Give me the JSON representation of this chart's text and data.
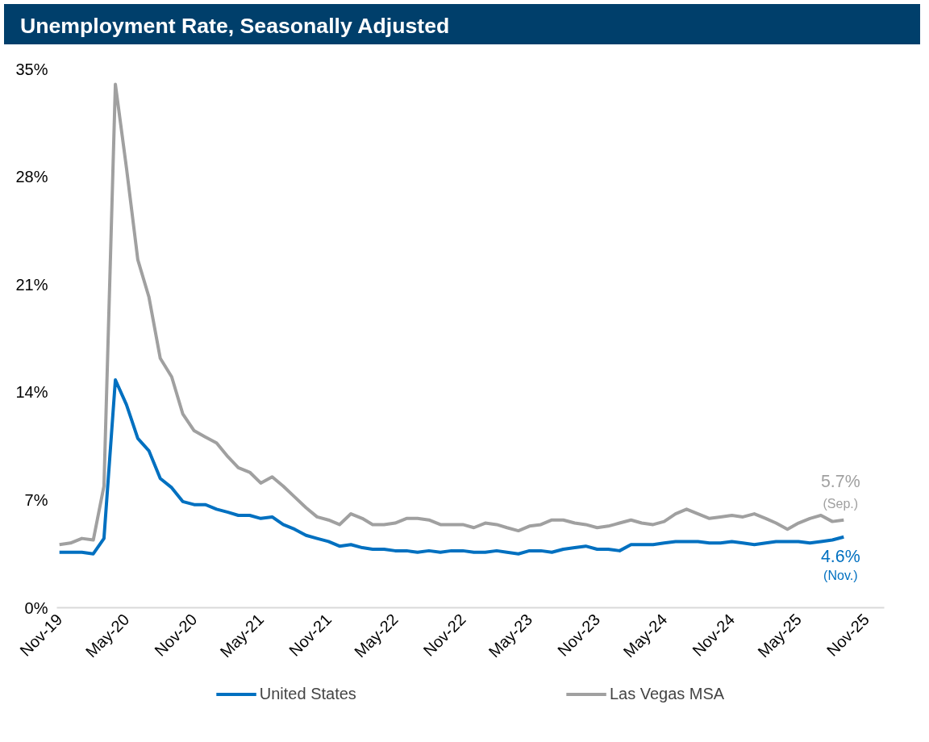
{
  "chart_data": {
    "type": "line",
    "title": "Unemployment Rate, Seasonally Adjusted",
    "x": [
      "2019-11",
      "2019-12",
      "2020-01",
      "2020-02",
      "2020-03",
      "2020-04",
      "2020-05",
      "2020-06",
      "2020-07",
      "2020-08",
      "2020-09",
      "2020-10",
      "2020-11",
      "2020-12",
      "2021-01",
      "2021-02",
      "2021-03",
      "2021-04",
      "2021-05",
      "2021-06",
      "2021-07",
      "2021-08",
      "2021-09",
      "2021-10",
      "2021-11",
      "2021-12",
      "2022-01",
      "2022-02",
      "2022-03",
      "2022-04",
      "2022-05",
      "2022-06",
      "2022-07",
      "2022-08",
      "2022-09",
      "2022-10",
      "2022-11",
      "2022-12",
      "2023-01",
      "2023-02",
      "2023-03",
      "2023-04",
      "2023-05",
      "2023-06",
      "2023-07",
      "2023-08",
      "2023-09",
      "2023-10",
      "2023-11",
      "2023-12",
      "2024-01",
      "2024-02",
      "2024-03",
      "2024-04",
      "2024-05",
      "2024-06",
      "2024-07",
      "2024-08",
      "2024-09",
      "2024-10",
      "2024-11",
      "2024-12",
      "2025-01",
      "2025-02",
      "2025-03",
      "2025-04",
      "2025-05",
      "2025-06",
      "2025-07",
      "2025-08",
      "2025-09"
    ],
    "series": [
      {
        "name": "United States",
        "color": "#0070c0",
        "values": [
          3.6,
          3.6,
          3.6,
          3.5,
          4.5,
          14.8,
          13.2,
          11.0,
          10.2,
          8.4,
          7.8,
          6.9,
          6.7,
          6.7,
          6.4,
          6.2,
          6.0,
          6.0,
          5.8,
          5.9,
          5.4,
          5.1,
          4.7,
          4.5,
          4.3,
          4.0,
          4.1,
          3.9,
          3.8,
          3.8,
          3.7,
          3.7,
          3.6,
          3.7,
          3.6,
          3.7,
          3.7,
          3.6,
          3.6,
          3.7,
          3.6,
          3.5,
          3.7,
          3.7,
          3.6,
          3.8,
          3.9,
          4.0,
          3.8,
          3.8,
          3.7,
          4.1,
          4.1,
          4.1,
          4.2,
          4.3,
          4.3,
          4.3,
          4.2,
          4.2,
          4.3,
          4.2,
          4.1,
          4.2,
          4.3,
          4.3,
          4.3,
          4.2,
          4.3,
          4.4,
          4.6
        ]
      },
      {
        "name": "Las Vegas MSA",
        "color": "#a0a0a0",
        "values": [
          4.1,
          4.2,
          4.5,
          4.4,
          7.9,
          34.0,
          28.6,
          22.6,
          20.2,
          16.2,
          15.0,
          12.6,
          11.5,
          11.1,
          10.7,
          9.8,
          9.1,
          8.8,
          8.1,
          8.5,
          7.9,
          7.2,
          6.5,
          5.9,
          5.7,
          5.4,
          6.1,
          5.8,
          5.4,
          5.4,
          5.5,
          5.8,
          5.8,
          5.7,
          5.4,
          5.4,
          5.4,
          5.2,
          5.5,
          5.4,
          5.2,
          5.0,
          5.3,
          5.4,
          5.7,
          5.7,
          5.5,
          5.4,
          5.2,
          5.3,
          5.5,
          5.7,
          5.5,
          5.4,
          5.6,
          6.1,
          6.4,
          6.1,
          5.8,
          5.9,
          6.0,
          5.9,
          6.1,
          5.8,
          5.5,
          5.1,
          5.5,
          5.8,
          6.0,
          5.6,
          5.7
        ]
      }
    ],
    "xlim": [
      "2019-10-25",
      "2025-12-20"
    ],
    "xticks": [
      {
        "value": "2019-11",
        "label": "Nov-19"
      },
      {
        "value": "2020-05",
        "label": "May-20"
      },
      {
        "value": "2020-11",
        "label": "Nov-20"
      },
      {
        "value": "2021-05",
        "label": "May-21"
      },
      {
        "value": "2021-11",
        "label": "Nov-21"
      },
      {
        "value": "2022-05",
        "label": "May-22"
      },
      {
        "value": "2022-11",
        "label": "Nov-22"
      },
      {
        "value": "2023-05",
        "label": "May-23"
      },
      {
        "value": "2023-11",
        "label": "Nov-23"
      },
      {
        "value": "2024-05",
        "label": "May-24"
      },
      {
        "value": "2024-11",
        "label": "Nov-24"
      },
      {
        "value": "2025-05",
        "label": "May-25"
      },
      {
        "value": "2025-11",
        "label": "Nov-25"
      }
    ],
    "ylim": [
      0,
      35
    ],
    "yticks": [
      {
        "value": 0,
        "label": "0%"
      },
      {
        "value": 7,
        "label": "7%"
      },
      {
        "value": 14,
        "label": "14%"
      },
      {
        "value": 21,
        "label": "21%"
      },
      {
        "value": 28,
        "label": "28%"
      },
      {
        "value": 35,
        "label": "35%"
      }
    ],
    "annotations": [
      {
        "text": "5.7%",
        "x": "2025-09",
        "y": 5.7
      },
      {
        "text": "(Sep.)",
        "x": "2025-09",
        "y": 5.7
      },
      {
        "text": "4.6%",
        "x": "2025-09",
        "y": 4.6
      },
      {
        "text": "(Nov.)",
        "x": "2025-09",
        "y": 4.6
      }
    ],
    "grid": false,
    "legend": "bottom",
    "marker": "none",
    "line_style": "solid"
  }
}
